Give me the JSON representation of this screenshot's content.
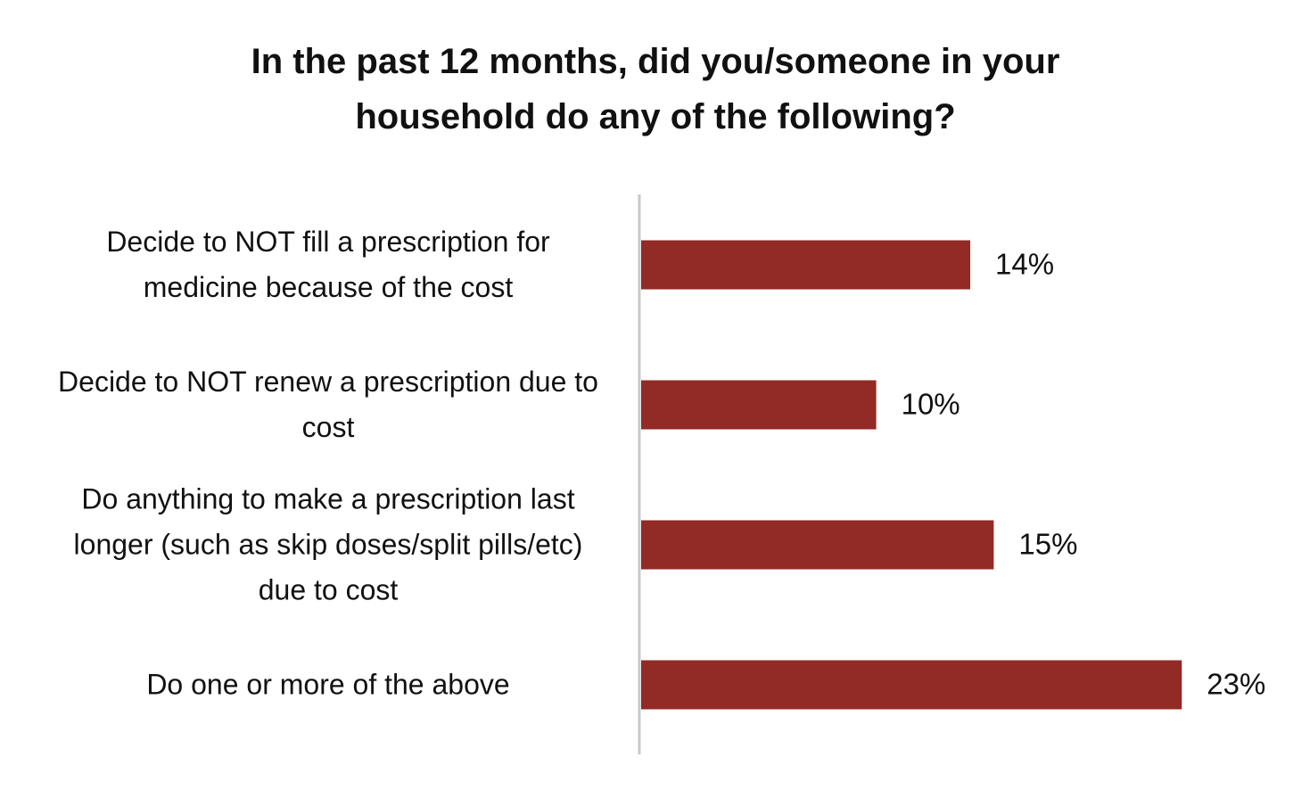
{
  "chart_data": {
    "type": "bar",
    "orientation": "horizontal",
    "title": "In the past 12 months, did you/someone in your household do any of the following?",
    "categories": [
      "Decide to NOT fill a prescription for medicine because of the cost",
      "Decide to NOT renew a prescription due to cost",
      "Do anything to make a prescription last longer (such as skip doses/split pills/etc) due to cost",
      "Do one or more of the above"
    ],
    "values": [
      14,
      10,
      15,
      23
    ],
    "value_labels": [
      "14%",
      "10%",
      "15%",
      "23%"
    ],
    "color": "#922a25"
  }
}
